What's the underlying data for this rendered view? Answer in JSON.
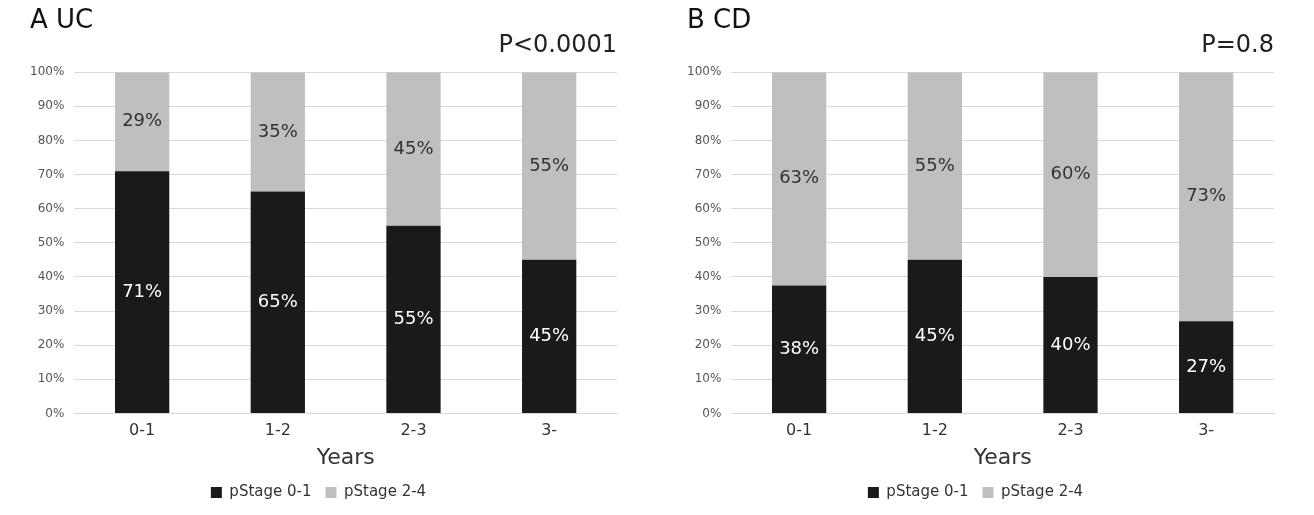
{
  "chart_data": [
    {
      "type": "bar",
      "title": "A UC",
      "xlabel": "Years",
      "annotations": [
        "P<0.0001"
      ],
      "categories": [
        "0-1",
        "1-2",
        "2-3",
        "3-"
      ],
      "stacked": true,
      "series": [
        {
          "name": "pStage 0-1",
          "color": "#1a1a1a",
          "values": [
            71,
            65,
            55,
            45
          ],
          "value_labels": [
            "71%",
            "65%",
            "55%",
            "45%"
          ]
        },
        {
          "name": "pStage 2-4",
          "color": "#bfbfbf",
          "values": [
            29,
            35,
            45,
            55
          ],
          "value_labels": [
            "29%",
            "35%",
            "45%",
            "55%"
          ]
        }
      ],
      "ylim": [
        0,
        100
      ],
      "yticks": [
        {
          "value": 0,
          "label": "0%"
        },
        {
          "value": 10,
          "label": "10%"
        },
        {
          "value": 20,
          "label": "20%"
        },
        {
          "value": 30,
          "label": "30%"
        },
        {
          "value": 40,
          "label": "40%"
        },
        {
          "value": 50,
          "label": "50%"
        },
        {
          "value": 60,
          "label": "60%"
        },
        {
          "value": 70,
          "label": "70%"
        },
        {
          "value": 80,
          "label": "80%"
        },
        {
          "value": 90,
          "label": "90%"
        },
        {
          "value": 100,
          "label": "100%"
        }
      ],
      "grid": "y",
      "legend": "bottom"
    },
    {
      "type": "bar",
      "title": "B CD",
      "xlabel": "Years",
      "annotations": [
        "P=0.8"
      ],
      "categories": [
        "0-1",
        "1-2",
        "2-3",
        "3-"
      ],
      "stacked": true,
      "series": [
        {
          "name": "pStage 0-1",
          "color": "#1a1a1a",
          "values": [
            37.5,
            45,
            40,
            27
          ],
          "value_labels": [
            "38%",
            "45%",
            "40%",
            "27%"
          ]
        },
        {
          "name": "pStage 2-4",
          "color": "#bfbfbf",
          "values": [
            62.5,
            55,
            60,
            73
          ],
          "value_labels": [
            "63%",
            "55%",
            "60%",
            "73%"
          ]
        }
      ],
      "ylim": [
        0,
        100
      ],
      "yticks": [
        {
          "value": 0,
          "label": "0%"
        },
        {
          "value": 10,
          "label": "10%"
        },
        {
          "value": 20,
          "label": "20%"
        },
        {
          "value": 30,
          "label": "30%"
        },
        {
          "value": 40,
          "label": "40%"
        },
        {
          "value": 50,
          "label": "50%"
        },
        {
          "value": 60,
          "label": "60%"
        },
        {
          "value": 70,
          "label": "70%"
        },
        {
          "value": 80,
          "label": "80%"
        },
        {
          "value": 90,
          "label": "90%"
        },
        {
          "value": 100,
          "label": "100%"
        }
      ],
      "grid": "y",
      "legend": "bottom"
    }
  ]
}
